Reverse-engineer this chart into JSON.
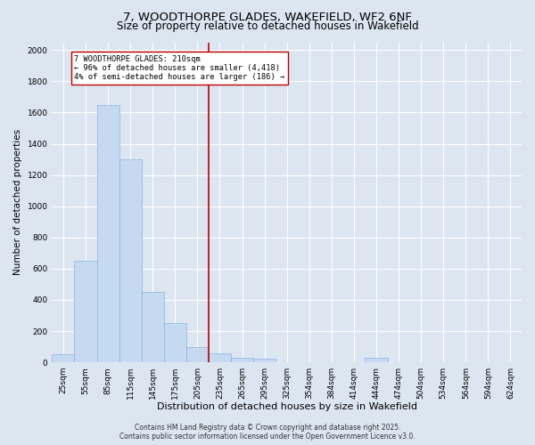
{
  "title_line1": "7, WOODTHORPE GLADES, WAKEFIELD, WF2 6NF",
  "title_line2": "Size of property relative to detached houses in Wakefield",
  "xlabel": "Distribution of detached houses by size in Wakefield",
  "ylabel": "Number of detached properties",
  "categories": [
    "25sqm",
    "55sqm",
    "85sqm",
    "115sqm",
    "145sqm",
    "175sqm",
    "205sqm",
    "235sqm",
    "265sqm",
    "295sqm",
    "325sqm",
    "354sqm",
    "384sqm",
    "414sqm",
    "444sqm",
    "474sqm",
    "504sqm",
    "534sqm",
    "564sqm",
    "594sqm",
    "624sqm"
  ],
  "values": [
    50,
    650,
    1650,
    1300,
    450,
    250,
    100,
    60,
    30,
    25,
    0,
    0,
    0,
    0,
    30,
    0,
    0,
    0,
    0,
    0,
    0
  ],
  "bar_color": "#c5d9f1",
  "bar_edge_color": "#8db4e2",
  "bar_edge_width": 0.5,
  "ylim": [
    0,
    2050
  ],
  "yticks": [
    0,
    200,
    400,
    600,
    800,
    1000,
    1200,
    1400,
    1600,
    1800,
    2000
  ],
  "property_line_color": "#c00000",
  "annotation_text": "7 WOODTHORPE GLADES: 210sqm\n← 96% of detached houses are smaller (4,418)\n4% of semi-detached houses are larger (186) →",
  "annotation_box_color": "#ffffff",
  "annotation_box_edge_color": "#c00000",
  "footer_line1": "Contains HM Land Registry data © Crown copyright and database right 2025.",
  "footer_line2": "Contains public sector information licensed under the Open Government Licence v3.0.",
  "background_color": "#dce6f1",
  "plot_background_color": "#dce6f1",
  "grid_color": "#ffffff",
  "title_fontsize": 9.5,
  "subtitle_fontsize": 8.5,
  "axis_label_fontsize": 7.5,
  "tick_fontsize": 6.5,
  "annotation_fontsize": 6.2,
  "footer_fontsize": 5.5
}
